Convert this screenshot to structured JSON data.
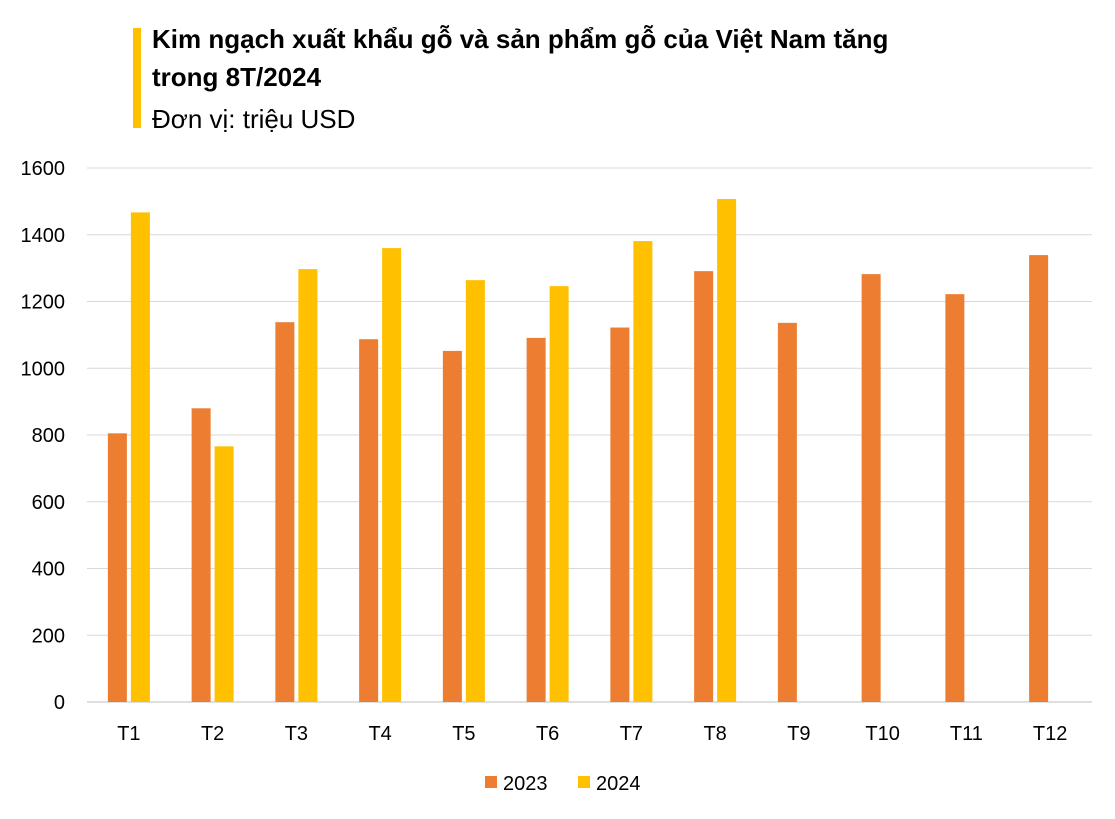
{
  "chart_data": {
    "type": "bar",
    "title": "Kim ngạch xuất khẩu gỗ và sản phẩm gỗ của Việt Nam tăng trong 8T/2024",
    "title_lines": [
      "Kim ngạch xuất khẩu gỗ và sản phẩm gỗ của Việt Nam tăng",
      "trong 8T/2024"
    ],
    "subtitle": "Đơn vị: triệu USD",
    "categories": [
      "T1",
      "T2",
      "T3",
      "T4",
      "T5",
      "T6",
      "T7",
      "T8",
      "T9",
      "T10",
      "T11",
      "T12"
    ],
    "series": [
      {
        "name": "2023",
        "color": "#ED7D31",
        "values": [
          805,
          880,
          1138,
          1087,
          1052,
          1091,
          1122,
          1291,
          1136,
          1282,
          1222,
          1339
        ]
      },
      {
        "name": "2024",
        "color": "#FFC000",
        "values": [
          1467,
          766,
          1297,
          1360,
          1264,
          1246,
          1381,
          1507,
          null,
          null,
          null,
          null
        ]
      }
    ],
    "ylim": [
      0,
      1600
    ],
    "yticks": [
      0,
      200,
      400,
      600,
      800,
      1000,
      1200,
      1400,
      1600
    ],
    "grid": true,
    "legend": "bottom",
    "accent_color": "#FFC000"
  }
}
